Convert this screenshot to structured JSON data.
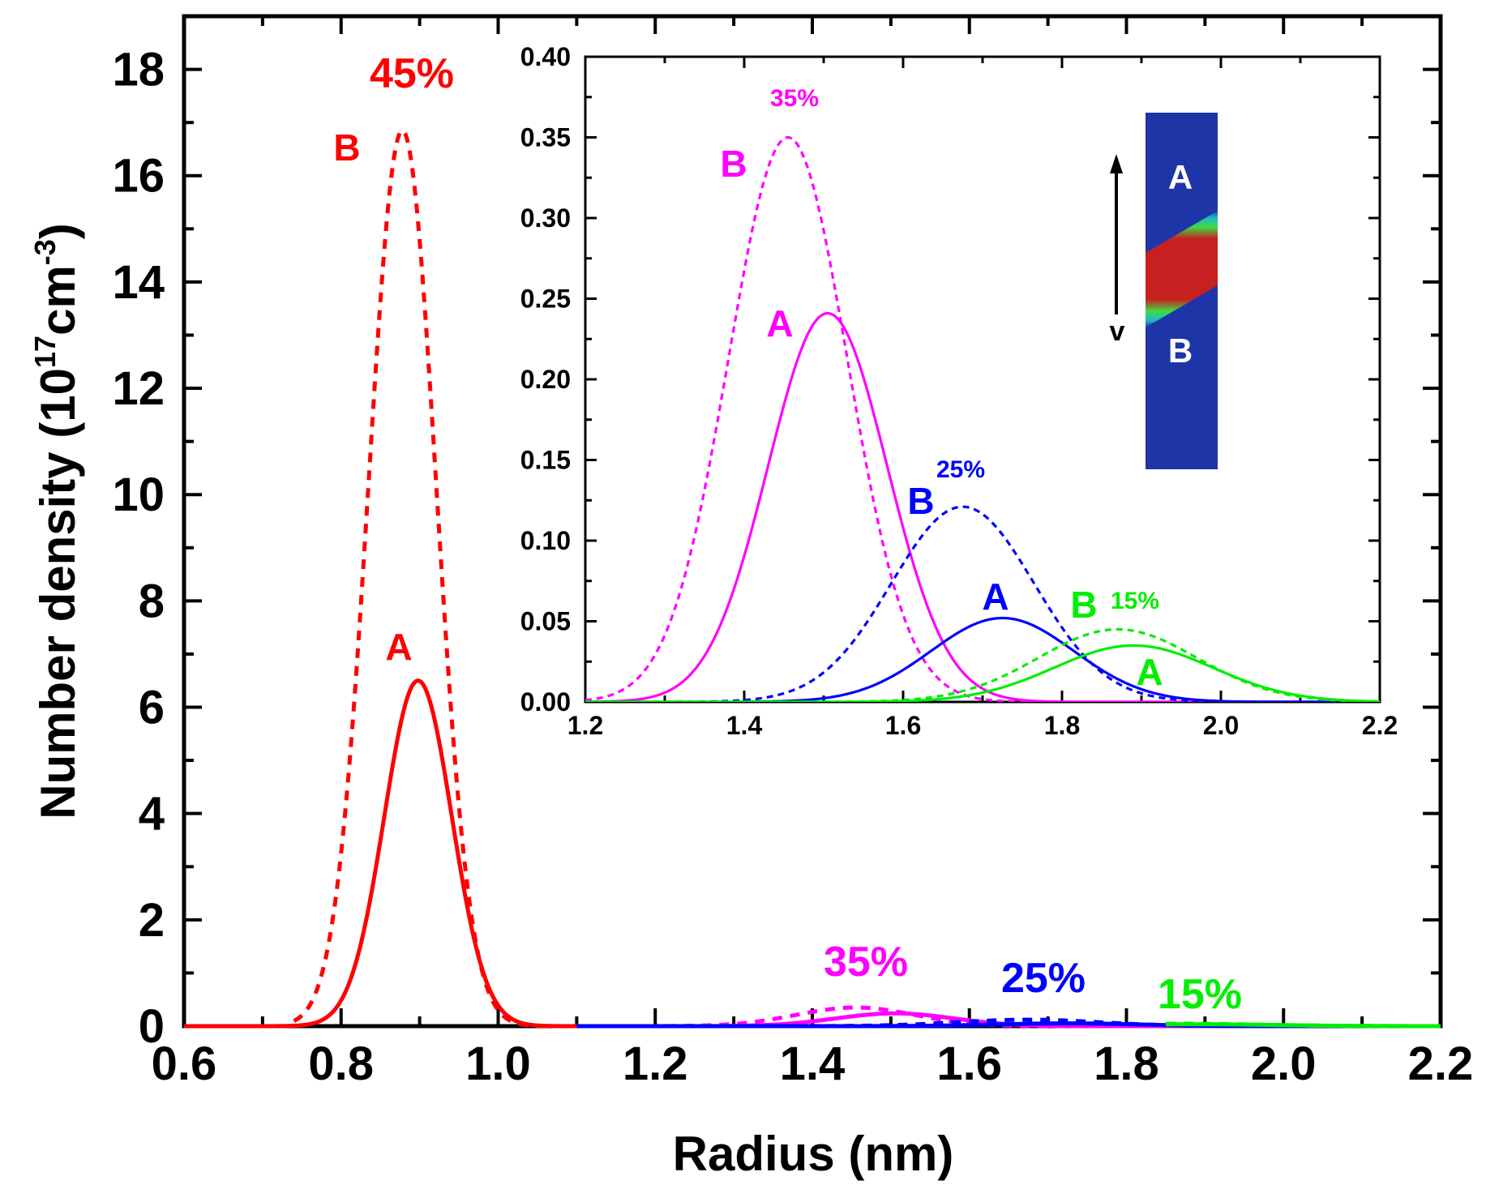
{
  "chart_data": [
    {
      "type": "line",
      "xlabel": "Radius (nm)",
      "ylabel_prefix": "Number density (10",
      "ylabel_exp1": "17",
      "ylabel_mid": "cm",
      "ylabel_exp2": "-3",
      "ylabel_suffix": ")",
      "xlim": [
        0.6,
        2.2
      ],
      "ylim": [
        0,
        19
      ],
      "xticks": [
        0.6,
        0.8,
        1.0,
        1.2,
        1.4,
        1.6,
        1.8,
        2.0,
        2.2
      ],
      "xtick_labels": [
        "0.6",
        "0.8",
        "1.0",
        "1.2",
        "1.4",
        "1.6",
        "1.8",
        "2.0",
        "2.2"
      ],
      "yticks": [
        0,
        2,
        4,
        6,
        8,
        10,
        12,
        14,
        16,
        18
      ],
      "ytick_labels": [
        "0",
        "2",
        "4",
        "6",
        "8",
        "10",
        "12",
        "14",
        "16",
        "18"
      ],
      "series": [
        {
          "name": "45% A",
          "color": "#ff0000",
          "dashed": false,
          "mean": 0.898,
          "sigma": 0.043,
          "peak": 6.5,
          "xrange": [
            0.6,
            1.12
          ]
        },
        {
          "name": "45% B",
          "color": "#ff0000",
          "dashed": true,
          "mean": 0.878,
          "sigma": 0.043,
          "peak": 16.85,
          "xrange": [
            0.74,
            1.12
          ]
        },
        {
          "name": "35% A",
          "color": "#ff00ff",
          "dashed": false,
          "mean": 1.505,
          "sigma": 0.075,
          "peak": 0.24,
          "xrange": [
            1.1,
            2.1
          ]
        },
        {
          "name": "35% B",
          "color": "#ff00ff",
          "dashed": true,
          "mean": 1.455,
          "sigma": 0.075,
          "peak": 0.35,
          "xrange": [
            1.1,
            2.1
          ]
        },
        {
          "name": "25% A",
          "color": "#0000ff",
          "dashed": false,
          "mean": 1.725,
          "sigma": 0.09,
          "peak": 0.052,
          "xrange": [
            1.1,
            2.12
          ]
        },
        {
          "name": "25% B",
          "color": "#0000ff",
          "dashed": true,
          "mean": 1.675,
          "sigma": 0.09,
          "peak": 0.121,
          "xrange": [
            1.1,
            2.12
          ]
        },
        {
          "name": "15% A",
          "color": "#00ee00",
          "dashed": false,
          "mean": 1.89,
          "sigma": 0.1,
          "peak": 0.035,
          "xrange": [
            1.85,
            2.2
          ]
        },
        {
          "name": "15% B",
          "color": "#00ee00",
          "dashed": true,
          "mean": 1.87,
          "sigma": 0.1,
          "peak": 0.045,
          "xrange": [
            1.85,
            2.2
          ]
        }
      ],
      "annotations": [
        {
          "text": "45%",
          "color": "#ff0000"
        },
        {
          "text": "B",
          "color": "#ff0000"
        },
        {
          "text": "A",
          "color": "#ff0000"
        },
        {
          "text": "35%",
          "color": "#ff00ff"
        },
        {
          "text": "25%",
          "color": "#0000ff"
        },
        {
          "text": "15%",
          "color": "#00ee00"
        }
      ]
    },
    {
      "type": "line",
      "xlim": [
        1.2,
        2.2
      ],
      "ylim": [
        0,
        0.4
      ],
      "xticks": [
        1.2,
        1.4,
        1.6,
        1.8,
        2.0,
        2.2
      ],
      "xtick_labels": [
        "1.2",
        "1.4",
        "1.6",
        "1.8",
        "2.0",
        "2.2"
      ],
      "yticks": [
        0,
        0.05,
        0.1,
        0.15,
        0.2,
        0.25,
        0.3,
        0.35,
        0.4
      ],
      "ytick_labels": [
        "0.00",
        "0.05",
        "0.10",
        "0.15",
        "0.20",
        "0.25",
        "0.30",
        "0.35",
        "0.40"
      ],
      "series": [
        {
          "name": "35% B",
          "color": "#ff00ff",
          "dashed": true,
          "mean": 1.455,
          "sigma": 0.075,
          "peak": 0.35
        },
        {
          "name": "35% A",
          "color": "#ff00ff",
          "dashed": false,
          "mean": 1.505,
          "sigma": 0.075,
          "peak": 0.241
        },
        {
          "name": "25% B",
          "color": "#0000ff",
          "dashed": true,
          "mean": 1.675,
          "sigma": 0.09,
          "peak": 0.121
        },
        {
          "name": "25% A",
          "color": "#0000ff",
          "dashed": false,
          "mean": 1.725,
          "sigma": 0.09,
          "peak": 0.052
        },
        {
          "name": "15% B",
          "color": "#00ee00",
          "dashed": true,
          "mean": 1.87,
          "sigma": 0.1,
          "peak": 0.045
        },
        {
          "name": "15% A",
          "color": "#00ee00",
          "dashed": false,
          "mean": 1.89,
          "sigma": 0.1,
          "peak": 0.035
        }
      ],
      "annotations": [
        {
          "text": "35%",
          "color": "#ff00ff"
        },
        {
          "text": "B",
          "color": "#ff00ff"
        },
        {
          "text": "A",
          "color": "#ff00ff"
        },
        {
          "text": "25%",
          "color": "#0000ff"
        },
        {
          "text": "B",
          "color": "#0000ff"
        },
        {
          "text": "A",
          "color": "#0000ff"
        },
        {
          "text": "15%",
          "color": "#00ee00"
        },
        {
          "text": "B",
          "color": "#00ee00"
        },
        {
          "text": "A",
          "color": "#00ee00"
        }
      ]
    }
  ],
  "micrograph": {
    "label_top": "A",
    "label_bottom": "B",
    "arrow_label": "v"
  }
}
